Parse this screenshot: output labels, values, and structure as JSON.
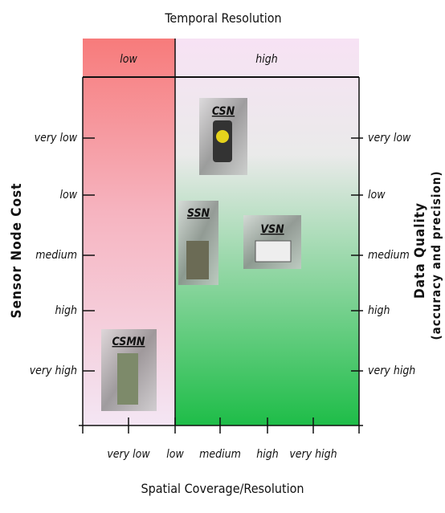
{
  "header": {
    "title": "Temporal Resolution",
    "sections": [
      "low",
      "high"
    ]
  },
  "left_axis": {
    "title": "Sensor Node Cost",
    "ticks": [
      "very low",
      "low",
      "medium",
      "high",
      "very high"
    ]
  },
  "right_axis": {
    "title_lines": [
      "Data Quality",
      "(accuracy and precision)"
    ],
    "ticks": [
      "very low",
      "low",
      "medium",
      "high",
      "very high"
    ]
  },
  "bottom_axis": {
    "title": "Spatial Coverage/Resolution",
    "ticks": [
      "very low",
      "low",
      "medium",
      "high",
      "very high"
    ]
  },
  "nodes": [
    {
      "label": "CSN"
    },
    {
      "label": "SSN"
    },
    {
      "label": "VSN"
    },
    {
      "label": "CSMN"
    }
  ]
}
